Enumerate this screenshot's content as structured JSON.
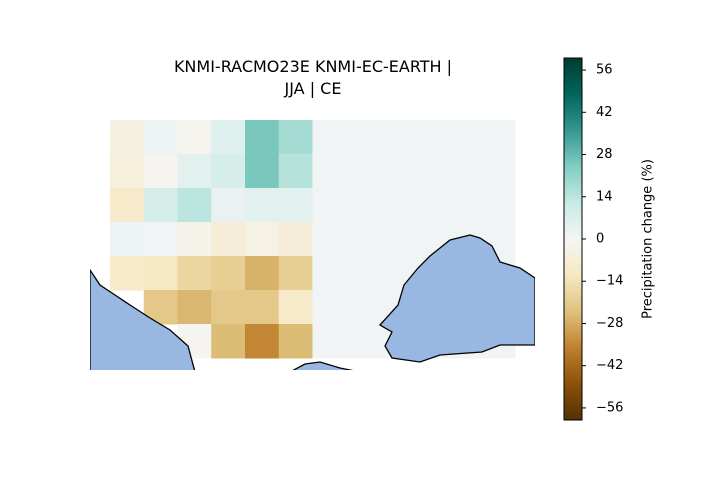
{
  "chart_data": {
    "type": "heatmap",
    "title": "KNMI-RACMO23E KNMI-EC-EARTH |",
    "subtitle": "JJA | CE",
    "colorbar_label": "Precipitation change (%)",
    "colormap": "BrBG",
    "clim": [
      -60,
      60
    ],
    "cticks": [
      {
        "value": -56,
        "label": "−56"
      },
      {
        "value": -42,
        "label": "−42"
      },
      {
        "value": -28,
        "label": "−28"
      },
      {
        "value": -14,
        "label": "−14"
      },
      0,
      14,
      28,
      42,
      56
    ],
    "values": [
      [
        -5,
        2,
        -2,
        6,
        25,
        18,
        1,
        1,
        1,
        1,
        1,
        1
      ],
      [
        -6,
        -1,
        5,
        8,
        25,
        15,
        1,
        1,
        1,
        1,
        1,
        1
      ],
      [
        -10,
        8,
        14,
        3,
        5,
        5,
        1,
        1,
        1,
        1,
        1,
        1
      ],
      [
        2,
        1,
        -3,
        -7,
        -4,
        -7,
        1,
        1,
        1,
        1,
        1,
        1
      ],
      [
        -10,
        -12,
        -18,
        -20,
        -27,
        -20,
        1,
        1,
        1,
        1,
        1,
        1
      ],
      [
        null,
        -22,
        -26,
        -22,
        -22,
        -10,
        1,
        1,
        1,
        1,
        1,
        1
      ],
      [
        null,
        null,
        -1,
        -25,
        -35,
        -25,
        1,
        1,
        1,
        1,
        1,
        1
      ]
    ]
  }
}
